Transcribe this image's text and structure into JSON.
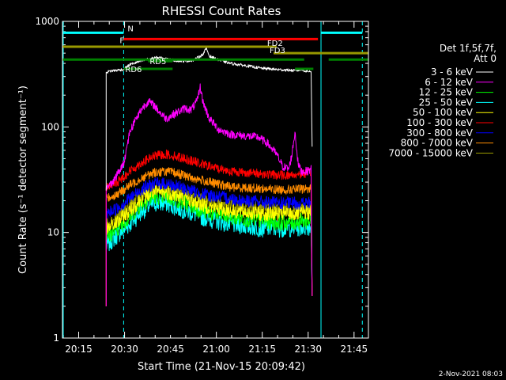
{
  "chart_data": {
    "type": "line",
    "title": "RHESSI Count Rates",
    "xlabel": "Start Time (21-Nov-15 20:09:42)",
    "ylabel": "Count Rate (s⁻¹ detector segment⁻¹)",
    "x_unit": "minutes after 20:09:42",
    "xlim": [
      0,
      100
    ],
    "ylim": [
      1,
      1000
    ],
    "yscale": "log",
    "grid": false,
    "legend_position": "right",
    "x_ticks": [
      {
        "label": "20:15",
        "x": 5.3
      },
      {
        "label": "20:30",
        "x": 20.3
      },
      {
        "label": "20:45",
        "x": 35.3
      },
      {
        "label": "21:00",
        "x": 50.3
      },
      {
        "label": "21:15",
        "x": 65.3
      },
      {
        "label": "21:30",
        "x": 80.3
      },
      {
        "label": "21:45",
        "x": 95.3
      }
    ],
    "y_ticks": [
      {
        "label": "1",
        "y": 1
      },
      {
        "label": "10",
        "y": 10
      },
      {
        "label": "100",
        "y": 100
      },
      {
        "label": "1000",
        "y": 1000
      }
    ],
    "detector_text": [
      "Det 1f,5f,7f,",
      "Att 0"
    ],
    "series": [
      {
        "name": "3 - 6 keV",
        "color": "#ffffff",
        "values": [
          [
            14.3,
            330
          ],
          [
            16,
            340
          ],
          [
            18,
            345
          ],
          [
            20,
            350
          ],
          [
            22,
            390
          ],
          [
            25,
            415
          ],
          [
            28,
            440
          ],
          [
            31,
            455
          ],
          [
            34,
            440
          ],
          [
            37,
            425
          ],
          [
            40,
            420
          ],
          [
            43,
            430
          ],
          [
            46,
            490
          ],
          [
            47,
            560
          ],
          [
            48,
            470
          ],
          [
            51,
            430
          ],
          [
            55,
            400
          ],
          [
            60,
            380
          ],
          [
            65,
            360
          ],
          [
            70,
            350
          ],
          [
            74,
            345
          ],
          [
            76,
            340
          ],
          [
            78,
            350
          ],
          [
            80,
            335
          ],
          [
            81.3,
            340
          ]
        ]
      },
      {
        "name": "6 - 12 keV",
        "color": "#ff00ff",
        "values": [
          [
            14.3,
            26
          ],
          [
            17,
            32
          ],
          [
            20,
            45
          ],
          [
            22,
            90
          ],
          [
            24,
            120
          ],
          [
            26,
            150
          ],
          [
            28,
            175
          ],
          [
            30,
            160
          ],
          [
            32,
            135
          ],
          [
            34,
            120
          ],
          [
            36,
            130
          ],
          [
            38,
            140
          ],
          [
            40,
            150
          ],
          [
            42,
            145
          ],
          [
            44,
            175
          ],
          [
            45,
            240
          ],
          [
            46,
            170
          ],
          [
            48,
            120
          ],
          [
            51,
            95
          ],
          [
            55,
            85
          ],
          [
            60,
            82
          ],
          [
            64,
            80
          ],
          [
            67,
            70
          ],
          [
            70,
            55
          ],
          [
            72,
            42
          ],
          [
            74,
            40
          ],
          [
            75,
            55
          ],
          [
            76,
            90
          ],
          [
            77,
            45
          ],
          [
            78,
            38
          ],
          [
            80,
            38
          ],
          [
            81.3,
            40
          ]
        ]
      },
      {
        "name": "12 - 25 keV",
        "color": "#00ff00",
        "values": [
          [
            14.3,
            9
          ],
          [
            18,
            11
          ],
          [
            22,
            14
          ],
          [
            26,
            19
          ],
          [
            30,
            22
          ],
          [
            34,
            22
          ],
          [
            38,
            20
          ],
          [
            42,
            18
          ],
          [
            46,
            16
          ],
          [
            50,
            15
          ],
          [
            55,
            14
          ],
          [
            60,
            13.5
          ],
          [
            65,
            13
          ],
          [
            70,
            12.5
          ],
          [
            75,
            12.5
          ],
          [
            81.3,
            13
          ]
        ]
      },
      {
        "name": "25 - 50 keV",
        "color": "#00ffff",
        "values": [
          [
            14.3,
            7.5
          ],
          [
            18,
            9.5
          ],
          [
            22,
            12
          ],
          [
            26,
            16
          ],
          [
            30,
            19
          ],
          [
            34,
            19
          ],
          [
            38,
            17
          ],
          [
            42,
            15.5
          ],
          [
            46,
            14
          ],
          [
            50,
            13
          ],
          [
            55,
            12
          ],
          [
            60,
            11.5
          ],
          [
            65,
            11
          ],
          [
            70,
            11
          ],
          [
            75,
            11
          ],
          [
            81.3,
            11.5
          ]
        ]
      },
      {
        "name": "50 - 100 keV",
        "color": "#ffff00",
        "values": [
          [
            14.3,
            10.5
          ],
          [
            18,
            12.5
          ],
          [
            22,
            16
          ],
          [
            26,
            21
          ],
          [
            30,
            24
          ],
          [
            34,
            24
          ],
          [
            38,
            22
          ],
          [
            42,
            20
          ],
          [
            46,
            18
          ],
          [
            50,
            17
          ],
          [
            55,
            16
          ],
          [
            60,
            15.5
          ],
          [
            65,
            15
          ],
          [
            70,
            15
          ],
          [
            75,
            15
          ],
          [
            81.3,
            15.5
          ]
        ]
      },
      {
        "name": "100 - 300 keV",
        "color": "#ff0000",
        "values": [
          [
            14.3,
            27
          ],
          [
            18,
            30
          ],
          [
            22,
            38
          ],
          [
            26,
            46
          ],
          [
            30,
            53
          ],
          [
            34,
            55
          ],
          [
            38,
            52
          ],
          [
            42,
            48
          ],
          [
            46,
            44
          ],
          [
            50,
            41
          ],
          [
            55,
            38
          ],
          [
            60,
            37
          ],
          [
            65,
            36
          ],
          [
            70,
            35
          ],
          [
            75,
            35
          ],
          [
            78,
            36
          ],
          [
            81.3,
            37
          ]
        ]
      },
      {
        "name": "300 - 800 keV",
        "color": "#0000ff",
        "values": [
          [
            14.3,
            15
          ],
          [
            18,
            17
          ],
          [
            22,
            21
          ],
          [
            26,
            26
          ],
          [
            30,
            29
          ],
          [
            34,
            29
          ],
          [
            38,
            27
          ],
          [
            42,
            25
          ],
          [
            46,
            23
          ],
          [
            50,
            22
          ],
          [
            55,
            21
          ],
          [
            60,
            20
          ],
          [
            65,
            19.5
          ],
          [
            70,
            19
          ],
          [
            75,
            19
          ],
          [
            81.3,
            19
          ]
        ]
      },
      {
        "name": "800 - 7000 keV",
        "color": "#ff8c00",
        "values": [
          [
            14.3,
            21
          ],
          [
            18,
            23
          ],
          [
            22,
            28
          ],
          [
            26,
            33
          ],
          [
            30,
            37
          ],
          [
            34,
            38
          ],
          [
            38,
            36
          ],
          [
            42,
            33
          ],
          [
            46,
            31
          ],
          [
            50,
            29
          ],
          [
            55,
            27
          ],
          [
            60,
            26.5
          ],
          [
            65,
            26
          ],
          [
            70,
            25.5
          ],
          [
            75,
            25.5
          ],
          [
            81.3,
            26
          ]
        ]
      },
      {
        "name": "7000 - 15000 keV",
        "color": "#999900",
        "values": [
          [
            14.3,
            12
          ],
          [
            18,
            14
          ],
          [
            22,
            18
          ],
          [
            26,
            23
          ],
          [
            30,
            26
          ],
          [
            34,
            26
          ],
          [
            38,
            24
          ],
          [
            42,
            22
          ],
          [
            46,
            20
          ],
          [
            50,
            19
          ],
          [
            55,
            18
          ],
          [
            60,
            17.5
          ],
          [
            65,
            17
          ],
          [
            70,
            16.5
          ],
          [
            75,
            16.5
          ],
          [
            81.3,
            17
          ]
        ]
      }
    ],
    "annotations": [
      {
        "label": "N",
        "color": "#00ffff",
        "y": 780,
        "x_ranges": [
          [
            0,
            20
          ]
        ]
      },
      {
        "label": "",
        "color": "#00ffff",
        "y": 780,
        "x_ranges": [
          [
            84.5,
            98
          ]
        ]
      },
      {
        "label": "F",
        "color": "#ff0000",
        "y": 680,
        "x_ranges": [
          [
            20,
            83.5
          ]
        ]
      },
      {
        "label": "FD2",
        "color": "#999900",
        "y": 575,
        "x_ranges": [
          [
            0,
            70
          ]
        ]
      },
      {
        "label": "FD3",
        "color": "#999900",
        "y": 500,
        "x_ranges": [
          [
            69,
            100
          ]
        ]
      },
      {
        "label": "",
        "color": "#008000",
        "y": 435,
        "x_ranges": [
          [
            0,
            79
          ],
          [
            87,
            100
          ]
        ]
      },
      {
        "label": "RD6",
        "color": "#008000",
        "y": 355,
        "x_ranges": [
          [
            20,
            36
          ]
        ]
      },
      {
        "label": "RD5",
        "color": "#008000",
        "y": 420,
        "x_ranges": [
          [
            28,
            36
          ]
        ]
      },
      {
        "label": "",
        "color": "#008000",
        "y": 355,
        "x_ranges": [
          [
            76,
            82
          ]
        ]
      }
    ],
    "vertical_lines": [
      {
        "x": 0,
        "color": "#00ffff",
        "style": "solid"
      },
      {
        "x": 20,
        "color": "#00ffff",
        "style": "dashed"
      },
      {
        "x": 84.5,
        "color": "#00ffff",
        "style": "solid"
      },
      {
        "x": 98,
        "color": "#00ffff",
        "style": "dashed"
      }
    ]
  },
  "footer_date": "2-Nov-2021 08:03"
}
